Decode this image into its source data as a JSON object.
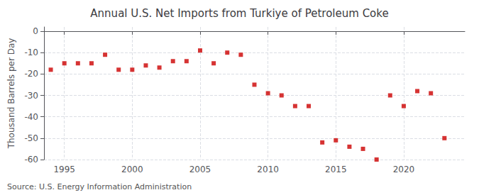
{
  "chart_data": {
    "type": "scatter",
    "title": "Annual U.S. Net Imports from Turkiye of Petroleum Coke",
    "ylabel": "Thousand Barrels per Day",
    "annotations": [
      "Source: U.S. Energy Information Administration"
    ],
    "x": [
      1994,
      1995,
      1996,
      1997,
      1998,
      1999,
      2000,
      2001,
      2002,
      2003,
      2004,
      2005,
      2006,
      2007,
      2008,
      2009,
      2010,
      2011,
      2012,
      2013,
      2014,
      2015,
      2016,
      2017,
      2018,
      2019,
      2020,
      2021,
      2022,
      2023
    ],
    "values": [
      -18,
      -15,
      -15,
      -15,
      -11,
      -18,
      -18,
      -16,
      -17,
      -14,
      -14,
      -9,
      -15,
      -10,
      -11,
      -25,
      -29,
      -30,
      -35,
      -35,
      -52,
      -51,
      -54,
      -55,
      -60,
      -30,
      -35,
      -28,
      -29,
      -50
    ],
    "color": "#cc0000",
    "marker": "square",
    "xlim": [
      1993.5,
      2024.5
    ],
    "ylim": [
      -60,
      2
    ],
    "xticks": [
      1995,
      2000,
      2005,
      2010,
      2015,
      2020
    ],
    "yticks": [
      0,
      -10,
      -20,
      -30,
      -40,
      -50,
      -60
    ],
    "grid": true
  }
}
